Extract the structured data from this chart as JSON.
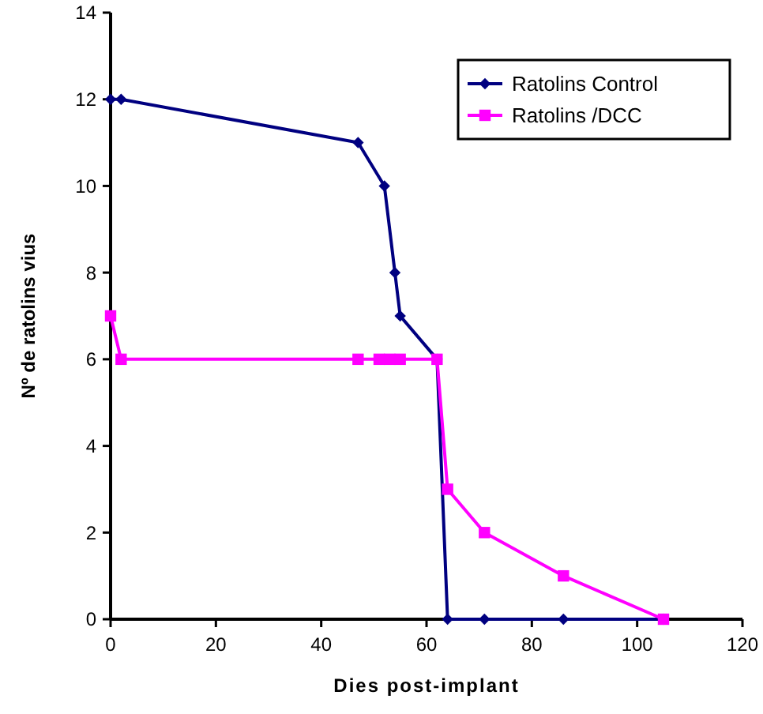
{
  "chart_data": {
    "type": "line",
    "xlabel": "Dies post-implant",
    "ylabel": "Nº de ratolins vius",
    "xlim": [
      0,
      120
    ],
    "xticks": [
      0,
      20,
      40,
      60,
      80,
      100,
      120
    ],
    "ylim": [
      0,
      14
    ],
    "yticks": [
      0,
      2,
      4,
      6,
      8,
      10,
      12,
      14
    ],
    "grid": false,
    "legend": "top right",
    "series": [
      {
        "name": "Ratolins Control",
        "color": "#000080",
        "marker": "diamond",
        "x": [
          0,
          2,
          47,
          52,
          54,
          55,
          62,
          64,
          71,
          86,
          105
        ],
        "values": [
          12,
          12,
          11,
          10,
          8,
          7,
          6,
          0,
          0,
          0,
          0
        ]
      },
      {
        "name": "Ratolins /DCC",
        "color": "#ff00ff",
        "marker": "square",
        "x": [
          0,
          2,
          47,
          51,
          53,
          55,
          62,
          64,
          71,
          86,
          105
        ],
        "values": [
          7,
          6,
          6,
          6,
          6,
          6,
          6,
          3,
          2,
          1,
          0
        ]
      }
    ]
  }
}
